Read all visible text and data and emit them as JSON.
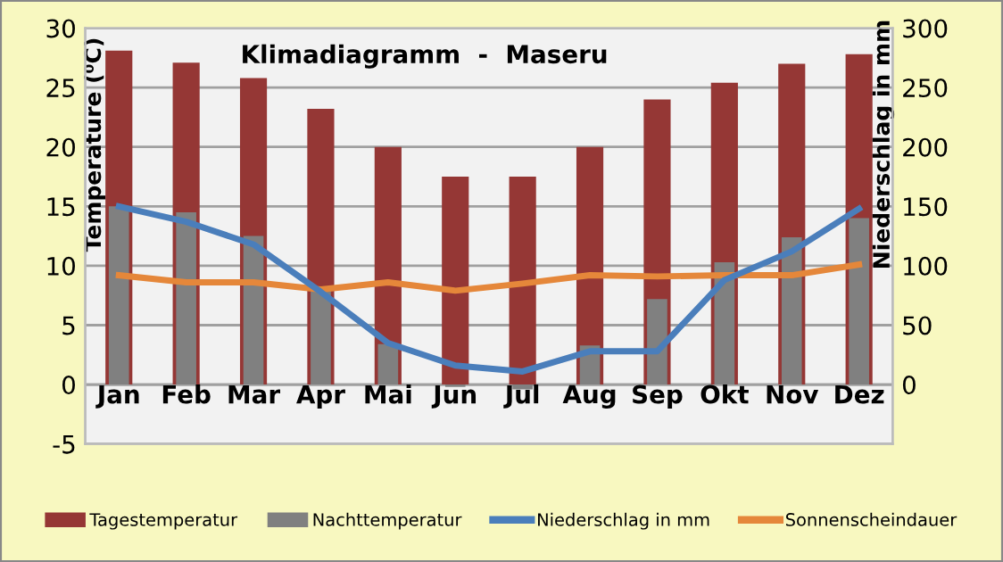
{
  "chart_data": {
    "type": "bar",
    "title": "Klimadiagramm  -  Maseru",
    "ylabel": "Temperature (⁰C)",
    "y2label": "Niederschlag in mm",
    "categories": [
      "Jan",
      "Feb",
      "Mar",
      "Apr",
      "Mai",
      "Jun",
      "Jul",
      "Aug",
      "Sep",
      "Okt",
      "Nov",
      "Dez"
    ],
    "series": [
      {
        "name": "Tagestemperatur",
        "color": "#953735",
        "values": [
          28.1,
          27.1,
          25.8,
          23.2,
          20,
          17.5,
          17.5,
          20,
          24,
          25.4,
          27,
          27.8
        ]
      },
      {
        "name": "Nachttemperatur",
        "color": "#808080",
        "values": [
          15,
          14.5,
          12.5,
          7.9,
          3.4,
          -0.2,
          -0.4,
          3.3,
          7.2,
          10.3,
          12.4,
          14
        ]
      },
      {
        "name": "Niederschlag in mm",
        "type": "line",
        "axis": "y2",
        "color": "#4a7ebb",
        "values": [
          150,
          137,
          118,
          78,
          35,
          16,
          11,
          28,
          28,
          88,
          112,
          148
        ]
      },
      {
        "name": "Sonnenscheindauer",
        "type": "line",
        "color": "#e5873a",
        "values": [
          9.2,
          8.6,
          8.6,
          8,
          8.6,
          7.9,
          8.5,
          9.2,
          9.1,
          9.2,
          9.2,
          10.1
        ]
      }
    ],
    "ylim": [
      -5,
      30
    ],
    "yticks": [
      -5,
      0,
      5,
      10,
      15,
      20,
      25,
      30
    ],
    "y2lim": [
      -50,
      300
    ],
    "y2ticks": [
      0,
      50,
      100,
      150,
      200,
      250,
      300
    ],
    "grid": "y",
    "legend": "bottom",
    "marker": "none",
    "line_style": "solid"
  }
}
